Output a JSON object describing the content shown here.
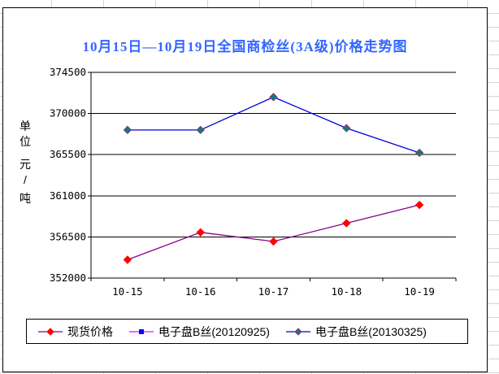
{
  "chart_title": "10月15日—10月19日全国商检丝(3A级)价格走势图",
  "colors": {
    "title": "#3366FF",
    "axis": "#000000",
    "sheet_gridline": "#D4D4D4",
    "spot_line": "#880088",
    "spot_marker": "#FF0000",
    "b20120925_line": "#FF00FF",
    "b20120925_marker": "#0000FF",
    "b20130325_line": "#0000DD",
    "b20130325_marker_fill": "#008080",
    "b20130325_marker_border": "#993366"
  },
  "y_axis": {
    "unit_label": "单位 元/吨",
    "unit_chars": [
      "单",
      "位",
      "元",
      "/",
      "吨"
    ]
  },
  "chart_data": {
    "type": "line",
    "title": "10月15日—10月19日全国商检丝(3A级)价格走势图",
    "categories": [
      "10-15",
      "10-16",
      "10-17",
      "10-18",
      "10-19"
    ],
    "series": [
      {
        "name": "现货价格",
        "line_color": "#880088",
        "marker": "diamond",
        "marker_color": "#FF0000",
        "marker_border": "#FF0000",
        "values": [
          354000,
          357000,
          356000,
          358000,
          360000
        ]
      },
      {
        "name": "电子盘B丝(20120925)",
        "line_color": "#FF00FF",
        "marker": "square",
        "marker_color": "#0000FF",
        "marker_border": "#0000FF",
        "values": [
          null,
          null,
          null,
          null,
          null
        ]
      },
      {
        "name": "电子盘B丝(20130325)",
        "line_color": "#0000DD",
        "marker": "diamond",
        "marker_color": "#008080",
        "marker_border": "#993366",
        "values": [
          368200,
          368200,
          371800,
          368400,
          365700
        ]
      }
    ],
    "xlabel": "",
    "ylabel": "单位 元/吨",
    "ylim": [
      352000,
      374500
    ],
    "ytick_interval": 4500,
    "yticks": [
      352000,
      356500,
      361000,
      365500,
      370000,
      374500
    ],
    "grid": true,
    "legend_position": "bottom"
  }
}
